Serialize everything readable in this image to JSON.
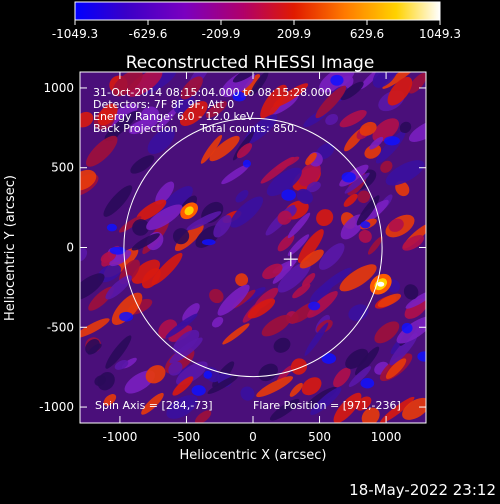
{
  "chart_data": {
    "type": "heatmap",
    "title": "Reconstructed RHESSI Image",
    "xlabel": "Heliocentric X (arcsec)",
    "ylabel": "Heliocentric Y (arcsec)",
    "xlim": [
      -1300,
      1300
    ],
    "ylim": [
      -1100,
      1100
    ],
    "x_ticks": [
      -1000,
      -500,
      0,
      500,
      1000
    ],
    "y_ticks": [
      1000,
      500,
      0,
      -500,
      -1000
    ],
    "x_tick_labels": [
      "-1000",
      "-500",
      "0",
      "500",
      "1000"
    ],
    "y_tick_labels": [
      "1000",
      "500",
      "0",
      "-500",
      "-1000"
    ],
    "colorbar": {
      "min": -1049.3,
      "max": 1049.3,
      "tick_labels": [
        "-1049.3",
        "-629.6",
        "-209.9",
        "209.9",
        "629.6",
        "1049.3"
      ],
      "colormap": [
        "#0000ff",
        "#3a00c8",
        "#7a00c0",
        "#b0006a",
        "#e01a00",
        "#ff7a00",
        "#ffd200",
        "#ffffff"
      ]
    },
    "solar_disk": {
      "center": [
        0,
        0
      ],
      "radius": 970,
      "color": "#ffffff"
    },
    "marker": {
      "symbol": "+",
      "x": 284,
      "y": -73
    },
    "annotations": [
      "31-Oct-2014 08:15:04.000 to 08:15:28.000",
      "Detectors: 7F 8F 9F, Att 0",
      "Energy Range: 6.0 - 12.0 keV",
      "Back Projection",
      "Total counts: 850."
    ],
    "spin_axis": "Spin Axis = [284,-73]",
    "flare_position": "Flare Position = [971,-236]",
    "bright_sources": [
      {
        "x": 960,
        "y": -230,
        "level": "max"
      },
      {
        "x": -480,
        "y": 230,
        "level": "high"
      }
    ]
  },
  "footer": {
    "timestamp": "18-May-2022 23:12"
  }
}
